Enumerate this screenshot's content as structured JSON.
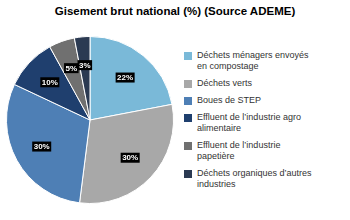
{
  "chart_data": {
    "type": "pie",
    "title": "Gisement brut national (%) (Source ADEME)",
    "categories": [
      "Déchets ménagers envoyés\nen compostage",
      "Déchets verts",
      "Boues de STEP",
      "Effluent de l’industrie agro\nalimentaire",
      "Effluent de l’industrie\npapetière",
      "Déchets organiques d’autres\nindustries"
    ],
    "values": [
      22,
      30,
      30,
      10,
      5,
      3
    ],
    "value_labels": [
      "22%",
      "30%",
      "30%",
      "10%",
      "5%",
      "3%"
    ],
    "colors": [
      "#7ab9d8",
      "#a8a8a8",
      "#4e7fb5",
      "#1f3f6e",
      "#707070",
      "#2b3a52"
    ],
    "data_labels": true,
    "legend": "right"
  }
}
